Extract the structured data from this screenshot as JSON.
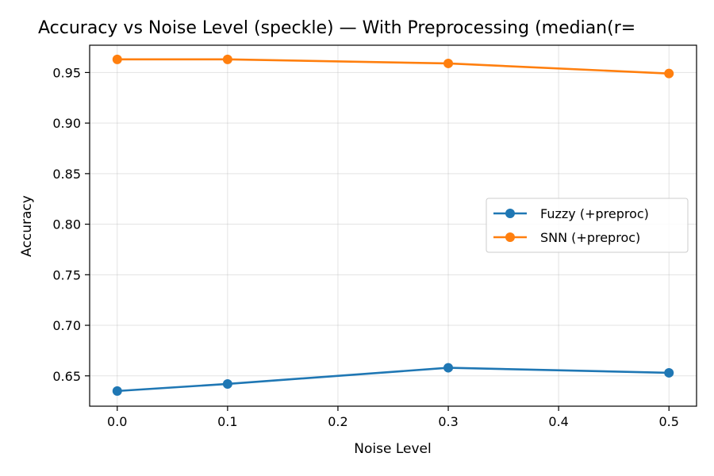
{
  "chart_data": {
    "type": "line",
    "title": "Accuracy vs Noise Level (speckle) — With Preprocessing (median(r=",
    "xlabel": "Noise Level",
    "ylabel": "Accuracy",
    "x": [
      0.0,
      0.1,
      0.3,
      0.5
    ],
    "xlim": [
      -0.025,
      0.525
    ],
    "ylim": [
      0.62,
      0.977
    ],
    "xticks": [
      "0.0",
      "0.1",
      "0.2",
      "0.3",
      "0.4",
      "0.5"
    ],
    "yticks": [
      "0.65",
      "0.70",
      "0.75",
      "0.80",
      "0.85",
      "0.90",
      "0.95"
    ],
    "grid": true,
    "legend_position": "center-right",
    "series": [
      {
        "name": "Fuzzy (+preproc)",
        "color": "#1f77b4",
        "marker": "circle",
        "values": [
          0.635,
          0.642,
          0.658,
          0.653
        ]
      },
      {
        "name": "SNN (+preproc)",
        "color": "#ff7f0e",
        "marker": "circle",
        "values": [
          0.963,
          0.963,
          0.959,
          0.949
        ]
      }
    ]
  }
}
